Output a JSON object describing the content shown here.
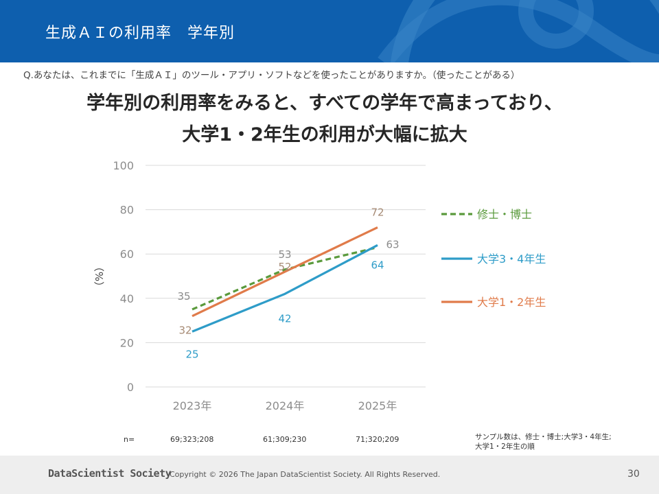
{
  "slide": {
    "title": "生成ＡＩの利用率　学年別",
    "question": "Q.あなたは、これまでに「生成ＡＩ」のツール・アプリ・ソフトなどを使ったことがありますか。（使ったことがある）",
    "headline_line1": "学年別の利用率をみると、すべての学年で高まっており、",
    "headline_line2": "大学1・2年生の利用が大幅に拡大"
  },
  "colors": {
    "header": "#0e5fae",
    "series_1": "#5a9a3c",
    "series_2": "#2e9cc8",
    "series_3": "#e07b4a"
  },
  "chart_data": {
    "type": "line",
    "categories": [
      "2023年",
      "2024年",
      "2025年"
    ],
    "ylabel": "（%）",
    "ylim": [
      0,
      100
    ],
    "yticks": [
      0,
      20,
      40,
      60,
      80,
      100
    ],
    "grid": true,
    "legend_position": "right",
    "series": [
      {
        "name": "修士・博士",
        "values": [
          35,
          53,
          63
        ],
        "color": "#5a9a3c",
        "dashed": true,
        "labels": [
          "35",
          "53",
          "63"
        ]
      },
      {
        "name": "大学3・4年生",
        "values": [
          25,
          42,
          64
        ],
        "color": "#2e9cc8",
        "dashed": false,
        "labels": [
          "25",
          "42",
          "64"
        ]
      },
      {
        "name": "大学1・2年生",
        "values": [
          32,
          52,
          72
        ],
        "color": "#e07b4a",
        "dashed": false,
        "labels": [
          "32",
          "52",
          "72"
        ]
      }
    ]
  },
  "sample": {
    "prefix": "n=",
    "values": [
      "69;323;208",
      "61;309;230",
      "71;320;209"
    ],
    "note_line1": "サンプル数は、修士・博士;大学3・4年生;",
    "note_line2": "大学1・2年生の順"
  },
  "footer": {
    "logo": "DataScientist Society",
    "copyright": "Copyright © 2026  The Japan DataScientist Society. All Rights Reserved.",
    "page": "30"
  }
}
